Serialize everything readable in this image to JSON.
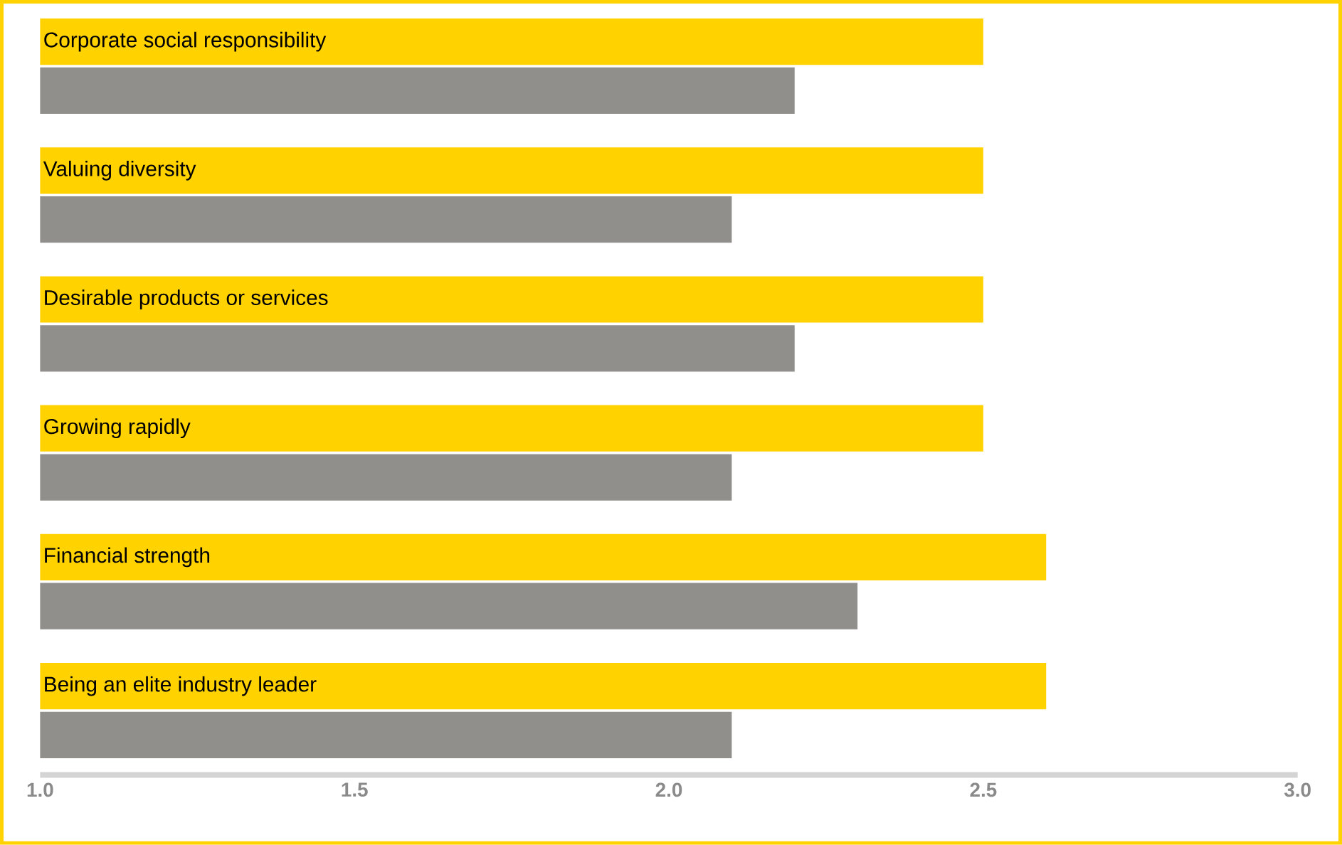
{
  "chart_data": {
    "type": "bar",
    "orientation": "horizontal",
    "categories": [
      "Corporate social responsibility",
      "Valuing diversity",
      "Desirable products or services",
      "Growing rapidly",
      "Financial strength",
      "Being an elite industry leader"
    ],
    "series": [
      {
        "color": "#ffd200",
        "values": [
          2.5,
          2.5,
          2.5,
          2.5,
          2.6,
          2.6
        ]
      },
      {
        "color": "#918f8c",
        "values": [
          2.2,
          2.1,
          2.2,
          2.1,
          2.3,
          2.1
        ]
      }
    ],
    "xlim": [
      1.0,
      3.0
    ],
    "xticks": [
      {
        "value": 1.0,
        "label": "1.0"
      },
      {
        "value": 1.5,
        "label": "1.5"
      },
      {
        "value": 2.0,
        "label": "2.0"
      },
      {
        "value": 2.5,
        "label": "2.5"
      },
      {
        "value": 3.0,
        "label": "3.0"
      }
    ],
    "grid": false
  }
}
